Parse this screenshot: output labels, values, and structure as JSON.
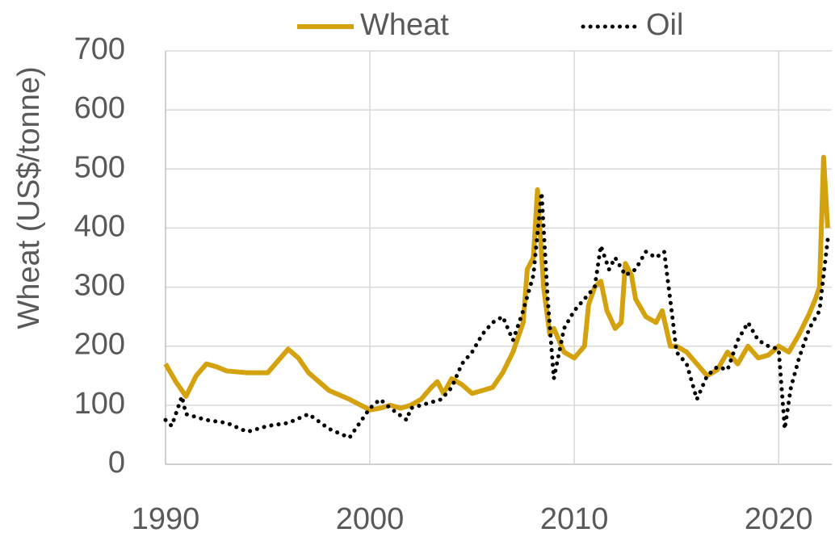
{
  "chart_data": {
    "type": "line",
    "y_label": "Wheat (US$/tonne)",
    "xlim": [
      1990,
      2022.6
    ],
    "xticks": [
      1990,
      2000,
      2010,
      2020
    ],
    "ylim": [
      0,
      700
    ],
    "yticks": [
      0,
      100,
      200,
      300,
      400,
      500,
      600,
      700
    ],
    "grid": true,
    "legend": "top",
    "series": [
      {
        "name": "Wheat",
        "color": "#d4a20e",
        "style": "solid",
        "x": [
          1990,
          1990.5,
          1991,
          1991.5,
          1992,
          1992.5,
          1993,
          1994,
          1995,
          1995.5,
          1996,
          1996.5,
          1997,
          1998,
          1999,
          2000,
          2000.5,
          2001,
          2001.5,
          2002,
          2002.5,
          2003,
          2003.3,
          2003.6,
          2004,
          2004.5,
          2005,
          2005.5,
          2006,
          2006.5,
          2007,
          2007.5,
          2007.7,
          2008,
          2008.2,
          2008.5,
          2008.8,
          2009,
          2009.5,
          2010,
          2010.5,
          2010.7,
          2011,
          2011.3,
          2011.6,
          2012,
          2012.3,
          2012.5,
          2012.8,
          2013,
          2013.5,
          2014,
          2014.3,
          2014.7,
          2015,
          2015.5,
          2016,
          2016.5,
          2017,
          2017.5,
          2018,
          2018.5,
          2019,
          2019.5,
          2020,
          2020.5,
          2021,
          2021.5,
          2021.8,
          2022,
          2022.2,
          2022.4
        ],
        "values": [
          170,
          140,
          115,
          150,
          170,
          165,
          158,
          155,
          155,
          175,
          195,
          180,
          155,
          125,
          110,
          92,
          95,
          100,
          95,
          100,
          110,
          130,
          140,
          120,
          145,
          135,
          120,
          125,
          130,
          155,
          190,
          240,
          330,
          350,
          465,
          300,
          220,
          230,
          190,
          180,
          200,
          270,
          300,
          310,
          260,
          230,
          240,
          340,
          320,
          280,
          250,
          240,
          260,
          200,
          200,
          190,
          170,
          150,
          160,
          190,
          170,
          200,
          180,
          185,
          200,
          190,
          220,
          255,
          280,
          300,
          520,
          400
        ]
      },
      {
        "name": "Oil",
        "color": "#000000",
        "style": "dotted",
        "x": [
          1990,
          1990.3,
          1990.8,
          1991,
          1992,
          1993,
          1994,
          1995,
          1996,
          1997,
          1998,
          1999,
          1999.5,
          2000,
          2000.5,
          2001,
          2001.8,
          2002,
          2003,
          2003.5,
          2004,
          2004.5,
          2005,
          2005.5,
          2006,
          2006.5,
          2007,
          2007.5,
          2008,
          2008.4,
          2008.7,
          2009,
          2009.5,
          2010,
          2010.5,
          2011,
          2011.3,
          2011.7,
          2012,
          2012.5,
          2013,
          2013.5,
          2014,
          2014.4,
          2014.8,
          2015,
          2015.5,
          2016,
          2016.5,
          2017,
          2017.5,
          2018,
          2018.5,
          2019,
          2019.5,
          2020,
          2020.3,
          2020.6,
          2021,
          2021.5,
          2022,
          2022.4
        ],
        "values": [
          75,
          65,
          115,
          85,
          75,
          70,
          55,
          65,
          70,
          85,
          60,
          45,
          70,
          95,
          110,
          95,
          75,
          95,
          105,
          110,
          130,
          170,
          190,
          220,
          240,
          250,
          210,
          260,
          320,
          460,
          280,
          145,
          230,
          260,
          280,
          300,
          370,
          330,
          350,
          320,
          330,
          360,
          350,
          360,
          250,
          190,
          170,
          110,
          150,
          165,
          160,
          210,
          240,
          210,
          200,
          195,
          60,
          130,
          180,
          230,
          260,
          380
        ]
      }
    ]
  }
}
